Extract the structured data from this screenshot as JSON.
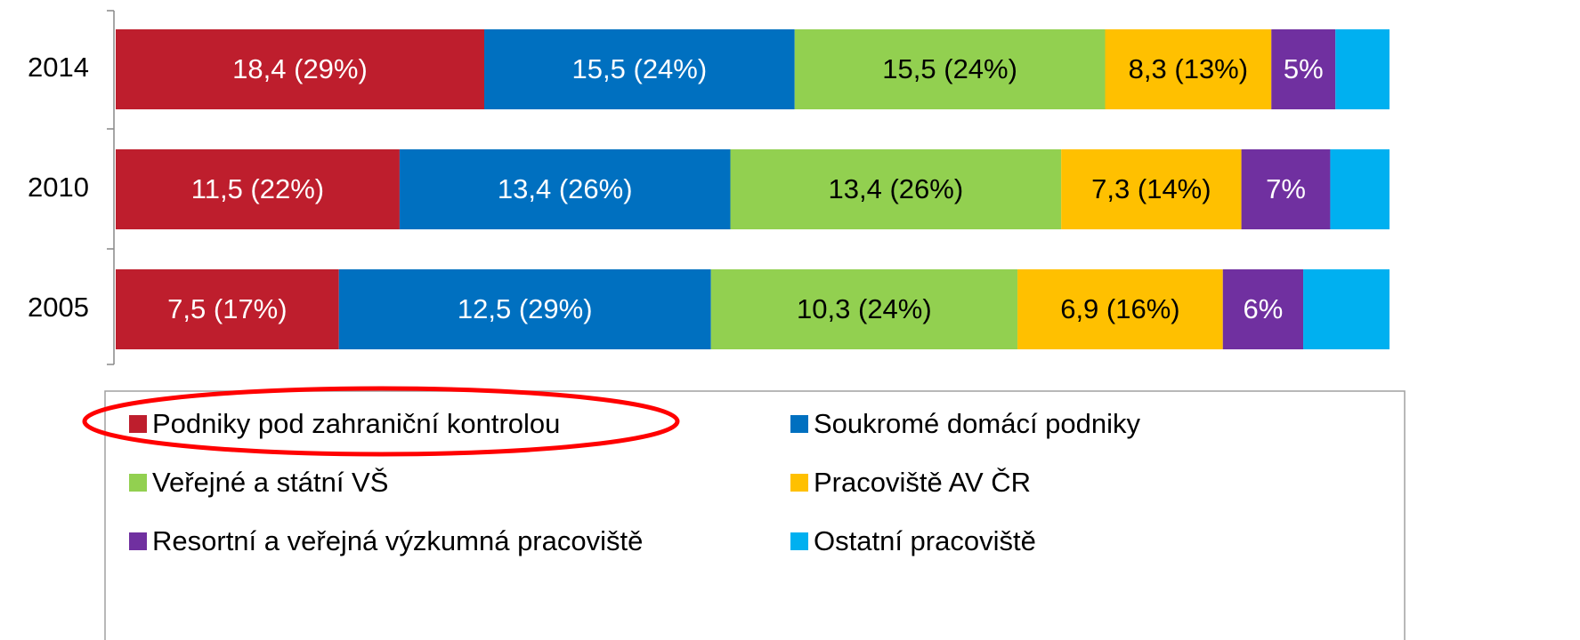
{
  "chart_data": {
    "type": "stacked-bar-100",
    "orientation": "horizontal",
    "categories": [
      "2014",
      "2010",
      "2005"
    ],
    "series": [
      {
        "name": "Podniky pod zahraniční kontrolou",
        "color": "#be1e2d",
        "values": [
          18.4,
          11.5,
          7.5
        ],
        "value_labels": [
          "18,4 (29%)",
          "11,5 (22%)",
          "7,5 (17%)"
        ]
      },
      {
        "name": "Soukromé domácí podniky",
        "color": "#0070c0",
        "values": [
          15.5,
          13.4,
          12.5
        ],
        "value_labels": [
          "15,5 (24%)",
          "13,4 (26%)",
          "12,5 (29%)"
        ]
      },
      {
        "name": "Veřejné a státní VŠ",
        "color": "#92d050",
        "values": [
          15.5,
          13.4,
          10.3
        ],
        "value_labels": [
          "15,5 (24%)",
          "13,4 (26%)",
          "10,3 (24%)"
        ]
      },
      {
        "name": "Pracoviště AV ČR",
        "color": "#ffc000",
        "values": [
          8.3,
          7.3,
          6.9
        ],
        "value_labels": [
          "8,3 (13%)",
          "7,3 (14%)",
          "6,9 (16%)"
        ]
      },
      {
        "name": "Resortní a veřejná výzkumná pracoviště",
        "color": "#7030a0",
        "values": [
          3.2,
          3.6,
          2.7
        ],
        "value_labels": [
          "5%",
          "7%",
          "6%"
        ]
      },
      {
        "name": "Ostatní pracoviště",
        "color": "#00b0f0",
        "values": [
          2.7,
          2.4,
          2.9
        ],
        "value_labels": [
          null,
          null,
          null
        ]
      }
    ]
  }
}
